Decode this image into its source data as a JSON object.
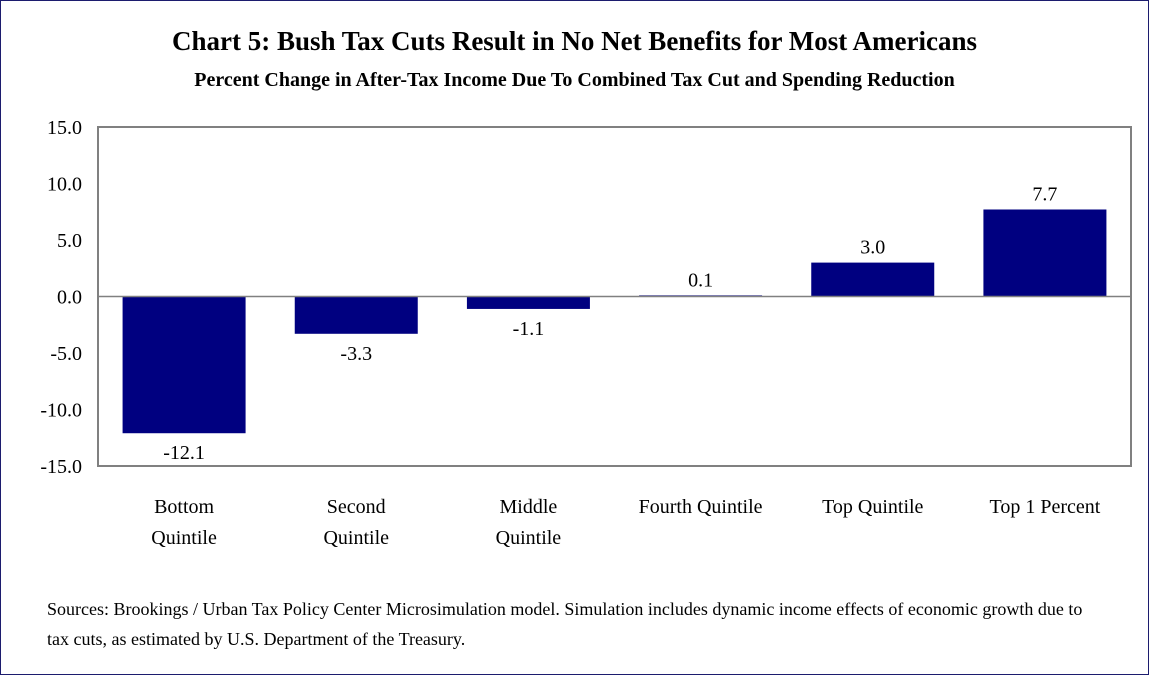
{
  "title": "Chart 5: Bush Tax Cuts Result in No Net Benefits for Most Americans",
  "subtitle": "Percent Change in After-Tax Income Due To Combined Tax Cut and Spending Reduction",
  "sources": "Sources: Brookings / Urban Tax Policy Center Microsimulation model. Simulation includes dynamic income effects of economic growth due to tax cuts, as estimated by U.S. Department of the Treasury.",
  "colors": {
    "bar": "#000080",
    "axis": "#808080",
    "frame": "#1c1c6e"
  },
  "chart_data": {
    "type": "bar",
    "title": "Chart 5: Bush Tax Cuts Result in No Net Benefits for Most Americans",
    "subtitle": "Percent Change in After-Tax Income Due To Combined Tax Cut and Spending Reduction",
    "categories": [
      [
        "Bottom",
        "Quintile"
      ],
      [
        "Second",
        "Quintile"
      ],
      [
        "Middle",
        "Quintile"
      ],
      [
        "Fourth Quintile"
      ],
      [
        "Top Quintile"
      ],
      [
        "Top 1 Percent"
      ]
    ],
    "values": [
      -12.1,
      -3.3,
      -1.1,
      0.1,
      3.0,
      7.7
    ],
    "value_labels": [
      "-12.1",
      "-3.3",
      "-1.1",
      "0.1",
      "3.0",
      "7.7"
    ],
    "ylim": [
      -15,
      15
    ],
    "yticks": [
      "15.0",
      "10.0",
      "5.0",
      "0.0",
      "-5.0",
      "-10.0",
      "-15.0"
    ],
    "ytick_values": [
      15,
      10,
      5,
      0,
      -5,
      -10,
      -15
    ],
    "grid": false,
    "legend": "none"
  }
}
